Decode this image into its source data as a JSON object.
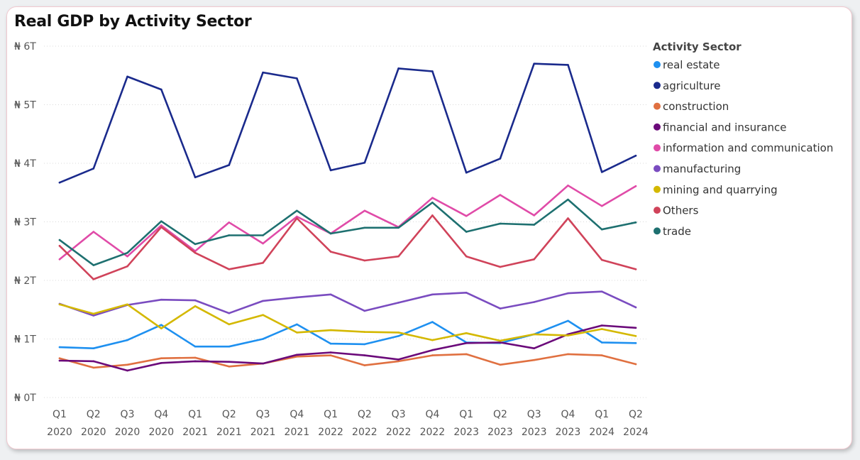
{
  "chart_data": {
    "type": "line",
    "title": "Real GDP by Activity Sector",
    "xlabel": "",
    "ylabel": "",
    "legend_title": "Activity Sector",
    "legend_position": "right",
    "grid": "horizontal-dotted",
    "y_tick_labels": [
      "₦ 0T",
      "₦ 1T",
      "₦ 2T",
      "₦ 3T",
      "₦ 4T",
      "₦ 5T",
      "₦ 6T"
    ],
    "ylim": [
      0,
      6
    ],
    "y_unit": "trillion naira",
    "categories": [
      {
        "quarter": "Q1",
        "year": "2020"
      },
      {
        "quarter": "Q2",
        "year": "2020"
      },
      {
        "quarter": "Q3",
        "year": "2020"
      },
      {
        "quarter": "Q4",
        "year": "2020"
      },
      {
        "quarter": "Q1",
        "year": "2021"
      },
      {
        "quarter": "Q2",
        "year": "2021"
      },
      {
        "quarter": "Q3",
        "year": "2021"
      },
      {
        "quarter": "Q4",
        "year": "2021"
      },
      {
        "quarter": "Q1",
        "year": "2022"
      },
      {
        "quarter": "Q2",
        "year": "2022"
      },
      {
        "quarter": "Q3",
        "year": "2022"
      },
      {
        "quarter": "Q4",
        "year": "2022"
      },
      {
        "quarter": "Q1",
        "year": "2023"
      },
      {
        "quarter": "Q2",
        "year": "2023"
      },
      {
        "quarter": "Q3",
        "year": "2023"
      },
      {
        "quarter": "Q4",
        "year": "2023"
      },
      {
        "quarter": "Q1",
        "year": "2024"
      },
      {
        "quarter": "Q2",
        "year": "2024"
      }
    ],
    "series": [
      {
        "name": " real estate",
        "color": "#1e90f0",
        "values": [
          0.86,
          0.84,
          0.98,
          1.24,
          0.87,
          0.87,
          1.0,
          1.25,
          0.92,
          0.91,
          1.05,
          1.29,
          0.94,
          0.93,
          1.08,
          1.31,
          0.94,
          0.93
        ]
      },
      {
        "name": "agriculture",
        "color": "#1a2a8c",
        "values": [
          3.67,
          3.91,
          5.48,
          5.26,
          3.76,
          3.97,
          5.55,
          5.45,
          3.88,
          4.01,
          5.62,
          5.57,
          3.84,
          4.08,
          5.7,
          5.68,
          3.85,
          4.13
        ]
      },
      {
        "name": "construction",
        "color": "#e07040",
        "values": [
          0.67,
          0.51,
          0.56,
          0.67,
          0.68,
          0.53,
          0.58,
          0.7,
          0.72,
          0.55,
          0.62,
          0.72,
          0.74,
          0.56,
          0.64,
          0.74,
          0.72,
          0.57
        ]
      },
      {
        "name": "financial and insurance",
        "color": "#6b0a7a",
        "values": [
          0.63,
          0.62,
          0.46,
          0.59,
          0.62,
          0.61,
          0.58,
          0.73,
          0.77,
          0.72,
          0.65,
          0.81,
          0.93,
          0.94,
          0.84,
          1.08,
          1.23,
          1.19
        ]
      },
      {
        "name": "information and communication",
        "color": "#e04ba8",
        "values": [
          2.36,
          2.83,
          2.41,
          2.94,
          2.5,
          2.99,
          2.63,
          3.09,
          2.8,
          3.19,
          2.91,
          3.41,
          3.1,
          3.46,
          3.11,
          3.62,
          3.27,
          3.61
        ]
      },
      {
        "name": "manufacturing",
        "color": "#7a4cc0",
        "values": [
          1.6,
          1.4,
          1.58,
          1.67,
          1.66,
          1.44,
          1.65,
          1.71,
          1.76,
          1.48,
          1.62,
          1.76,
          1.79,
          1.52,
          1.63,
          1.78,
          1.81,
          1.54
        ]
      },
      {
        "name": "mining and quarrying",
        "color": "#d4b800",
        "values": [
          1.59,
          1.43,
          1.59,
          1.18,
          1.56,
          1.25,
          1.41,
          1.11,
          1.15,
          1.12,
          1.11,
          0.98,
          1.1,
          0.97,
          1.08,
          1.06,
          1.17,
          1.05
        ]
      },
      {
        "name": "Others",
        "color": "#d0435a",
        "values": [
          2.59,
          2.02,
          2.24,
          2.91,
          2.47,
          2.19,
          2.3,
          3.06,
          2.49,
          2.34,
          2.41,
          3.11,
          2.41,
          2.23,
          2.36,
          3.06,
          2.35,
          2.19
        ]
      },
      {
        "name": "trade",
        "color": "#1e7070",
        "values": [
          2.69,
          2.26,
          2.47,
          3.01,
          2.62,
          2.77,
          2.77,
          3.19,
          2.8,
          2.9,
          2.9,
          3.33,
          2.83,
          2.97,
          2.95,
          3.38,
          2.87,
          2.99
        ]
      }
    ]
  }
}
